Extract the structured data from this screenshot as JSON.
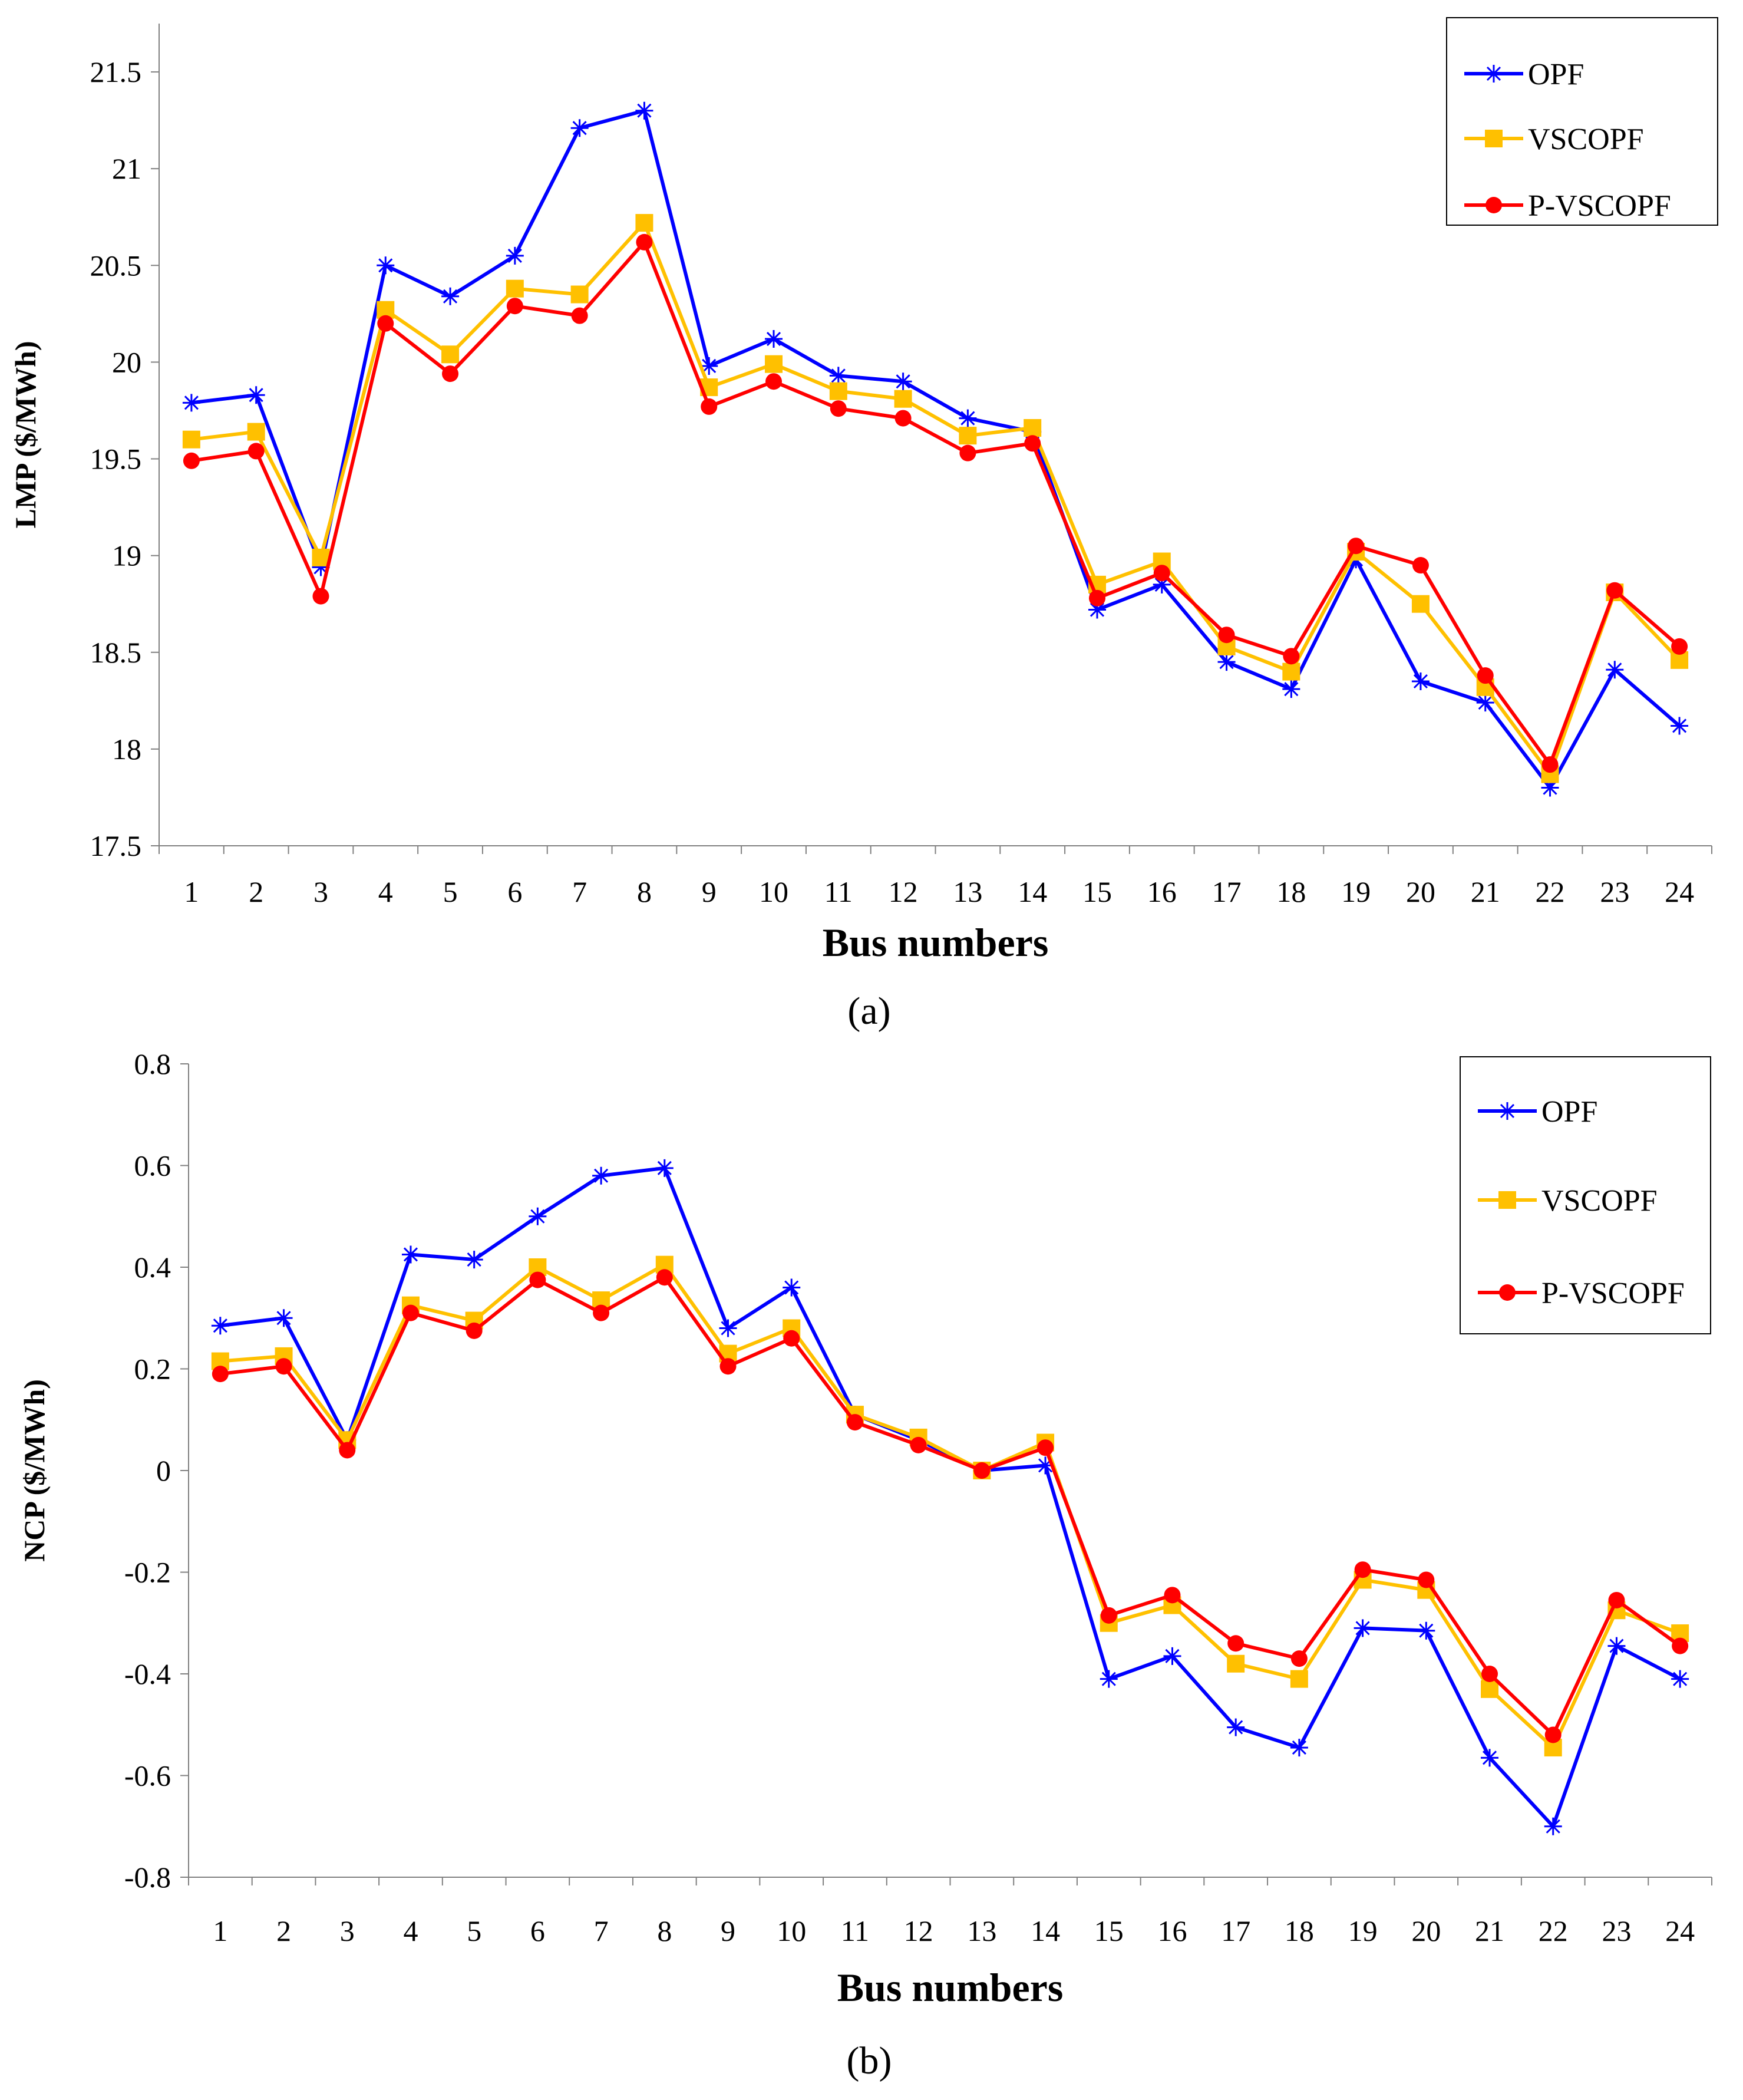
{
  "chart_data": [
    {
      "type": "line",
      "panel_label": "(a)",
      "title": "",
      "xlabel": "Bus numbers",
      "ylabel": "LMP ($/MWh)",
      "ylim": [
        17.5,
        21.75
      ],
      "yticks": [
        "17.5",
        "18",
        "18.5",
        "19",
        "19.5",
        "20",
        "20.5",
        "21",
        "21.5"
      ],
      "ytick_values": [
        17.5,
        18,
        18.5,
        19,
        19.5,
        20,
        20.5,
        21,
        21.5
      ],
      "categories": [
        "1",
        "2",
        "3",
        "4",
        "5",
        "6",
        "7",
        "8",
        "9",
        "10",
        "11",
        "12",
        "13",
        "14",
        "15",
        "16",
        "17",
        "18",
        "19",
        "20",
        "21",
        "22",
        "23",
        "24"
      ],
      "legend_position": "top-right",
      "grid": false,
      "series": [
        {
          "name": "OPF",
          "color": "#0000ff",
          "marker": "asterisk",
          "values": [
            19.79,
            19.83,
            18.94,
            20.5,
            20.34,
            20.55,
            21.21,
            21.3,
            19.98,
            20.12,
            19.93,
            19.9,
            19.71,
            19.64,
            18.72,
            18.85,
            18.45,
            18.31,
            18.98,
            18.35,
            18.24,
            17.8,
            18.41,
            18.12
          ]
        },
        {
          "name": "VSCOPF",
          "color": "#ffc000",
          "marker": "square",
          "values": [
            19.6,
            19.64,
            18.99,
            20.27,
            20.04,
            20.38,
            20.35,
            20.72,
            19.87,
            19.99,
            19.85,
            19.81,
            19.62,
            19.66,
            18.85,
            18.97,
            18.53,
            18.4,
            19.02,
            18.75,
            18.32,
            17.87,
            18.81,
            18.46
          ]
        },
        {
          "name": "P-VSCOPF",
          "color": "#ff0000",
          "marker": "circle",
          "values": [
            19.49,
            19.54,
            18.79,
            20.2,
            19.94,
            20.29,
            20.24,
            20.62,
            19.77,
            19.9,
            19.76,
            19.71,
            19.53,
            19.58,
            18.78,
            18.91,
            18.59,
            18.48,
            19.05,
            18.95,
            18.38,
            17.92,
            18.82,
            18.53
          ]
        }
      ]
    },
    {
      "type": "line",
      "panel_label": "(b)",
      "title": "",
      "xlabel": "Bus numbers",
      "ylabel": "NCP ($/MWh)",
      "ylim": [
        -0.8,
        0.8
      ],
      "yticks": [
        "-0.8",
        "-0.6",
        "-0.4",
        "-0.2",
        "0",
        "0.2",
        "0.4",
        "0.6",
        "0.8"
      ],
      "ytick_values": [
        -0.8,
        -0.6,
        -0.4,
        -0.2,
        0,
        0.2,
        0.4,
        0.6,
        0.8
      ],
      "categories": [
        "1",
        "2",
        "3",
        "4",
        "5",
        "6",
        "7",
        "8",
        "9",
        "10",
        "11",
        "12",
        "13",
        "14",
        "15",
        "16",
        "17",
        "18",
        "19",
        "20",
        "21",
        "22",
        "23",
        "24"
      ],
      "legend_position": "top-right",
      "grid": false,
      "series": [
        {
          "name": "OPF",
          "color": "#0000ff",
          "marker": "asterisk",
          "values": [
            0.285,
            0.3,
            0.06,
            0.425,
            0.415,
            0.5,
            0.58,
            0.595,
            0.28,
            0.36,
            0.11,
            0.06,
            0.0,
            0.01,
            -0.41,
            -0.365,
            -0.505,
            -0.545,
            -0.31,
            -0.315,
            -0.565,
            -0.7,
            -0.345,
            -0.41
          ]
        },
        {
          "name": "VSCOPF",
          "color": "#ffc000",
          "marker": "square",
          "values": [
            0.215,
            0.225,
            0.06,
            0.325,
            0.295,
            0.4,
            0.335,
            0.405,
            0.23,
            0.28,
            0.11,
            0.065,
            0.0,
            0.055,
            -0.3,
            -0.265,
            -0.38,
            -0.41,
            -0.215,
            -0.235,
            -0.43,
            -0.545,
            -0.275,
            -0.32
          ]
        },
        {
          "name": "P-VSCOPF",
          "color": "#ff0000",
          "marker": "circle",
          "values": [
            0.19,
            0.205,
            0.04,
            0.31,
            0.275,
            0.375,
            0.31,
            0.38,
            0.205,
            0.26,
            0.095,
            0.05,
            0.0,
            0.045,
            -0.285,
            -0.245,
            -0.34,
            -0.37,
            -0.195,
            -0.215,
            -0.4,
            -0.52,
            -0.255,
            -0.345
          ]
        }
      ]
    }
  ]
}
